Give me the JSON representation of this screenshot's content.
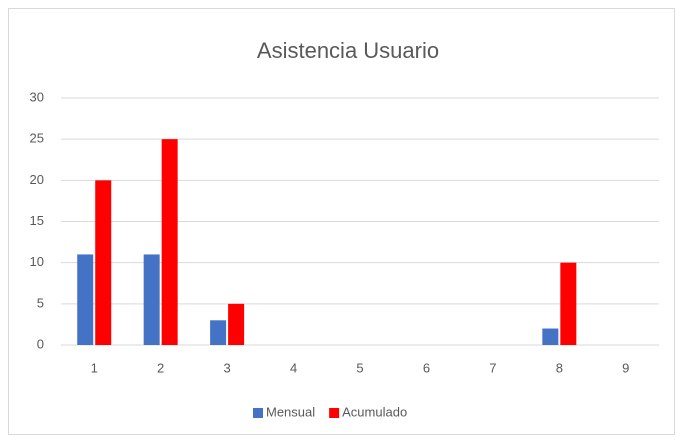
{
  "chart_data": {
    "type": "bar",
    "title": "Asistencia Usuario",
    "categories": [
      "1",
      "2",
      "3",
      "4",
      "5",
      "6",
      "7",
      "8",
      "9"
    ],
    "series": [
      {
        "name": "Mensual",
        "color": "#4472c4",
        "values": [
          11,
          11,
          3,
          0,
          0,
          0,
          0,
          2,
          0
        ]
      },
      {
        "name": "Acumulado",
        "color": "#ff0000",
        "values": [
          20,
          25,
          5,
          0,
          0,
          0,
          0,
          10,
          0
        ]
      }
    ],
    "ylim": [
      0,
      30
    ],
    "yticks": [
      0,
      5,
      10,
      15,
      20,
      25,
      30
    ],
    "grid": true,
    "legend": "bottom"
  }
}
